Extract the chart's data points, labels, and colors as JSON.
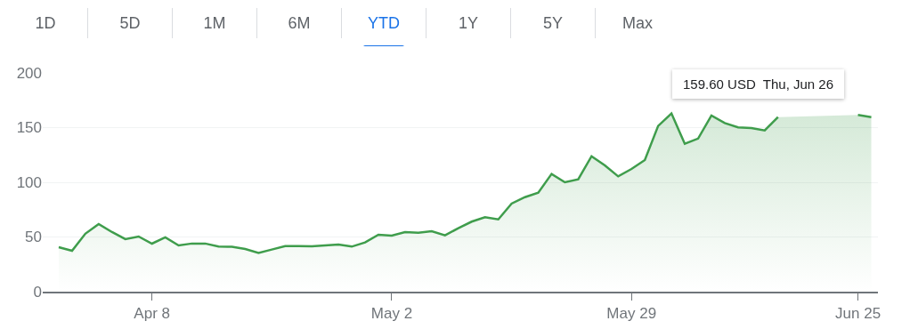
{
  "chart_data": {
    "type": "area",
    "categories": [
      null,
      null,
      null,
      null,
      null,
      null,
      null,
      "Apr 8",
      null,
      null,
      null,
      null,
      null,
      null,
      null,
      null,
      null,
      null,
      null,
      null,
      null,
      null,
      null,
      null,
      null,
      "May 2",
      null,
      null,
      null,
      null,
      null,
      null,
      null,
      null,
      null,
      null,
      null,
      null,
      null,
      null,
      null,
      null,
      null,
      "May 29",
      null,
      null,
      null,
      null,
      null,
      null,
      null,
      null,
      null,
      null,
      null,
      null,
      null,
      null,
      null,
      null,
      "Jun 25",
      null
    ],
    "series": [
      {
        "color": "#3f9d4c",
        "values": [
          40.6,
          37.4,
          53,
          61.8,
          54.5,
          48,
          50.4,
          43.9,
          49.6,
          42.3,
          44,
          44,
          41.2,
          41,
          39,
          35.5,
          38.5,
          41.7,
          41.7,
          41.5,
          42.3,
          43.1,
          41.2,
          45,
          52,
          51.2,
          54.5,
          53.9,
          55.3,
          51.5,
          58,
          64,
          68,
          66.1,
          80.5,
          86.4,
          90.5,
          107.6,
          100,
          102.7,
          123.8,
          115.4,
          105.4,
          112.2,
          120.3,
          151.5,
          163,
          135.2,
          140,
          161,
          154.2,
          150.2,
          149.6,
          147.4,
          159.6,
          null,
          null,
          null,
          null,
          null,
          161.5,
          159.6
        ]
      }
    ],
    "ylim": [
      0,
      200
    ],
    "yticks": [
      0,
      50,
      100,
      150,
      200
    ],
    "grid": "y",
    "legend": false,
    "annotations": [
      "1D",
      "5D",
      "1M",
      "6M",
      "YTD",
      "1Y",
      "5Y",
      "Max",
      "159.60 USD  Thu, Jun 26"
    ]
  }
}
